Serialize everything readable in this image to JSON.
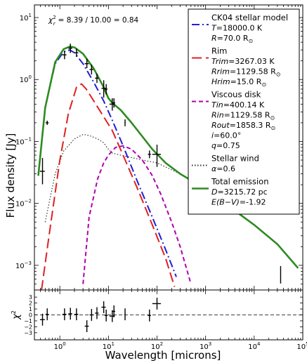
{
  "chart_data": [
    {
      "panel": "sed",
      "type": "line",
      "x_scale": "log",
      "y_scale": "log",
      "xlim": [
        0.3,
        100000
      ],
      "ylim": [
        0.0004,
        16
      ],
      "ylabel": "Flux density [Jy]",
      "x_ticks": [
        "10^0",
        "10^1",
        "10^2",
        "10^3",
        "10^4",
        "10^5"
      ],
      "y_ticks": [
        "10^-3",
        "10^-2",
        "10^-1",
        "10^0",
        "10^1"
      ],
      "chi_annotation": {
        "label": "χ",
        "sub": "r",
        "sup": "2",
        "text": "= 8.39 / 10.00 = 0.84"
      },
      "legend": [
        {
          "key": "stellar",
          "title": "CK04 stellar model",
          "lines": [
            {
              "var": "T",
              "text": "=18000.0 K"
            },
            {
              "var": "R",
              "text": "=70.0 R",
              "sun": true
            }
          ],
          "color": "#1f1fd6",
          "dash": "11,4,2,4"
        },
        {
          "key": "rim",
          "title": "Rim",
          "lines": [
            {
              "var": "Trim",
              "text": "=3267.03 K"
            },
            {
              "var": "Rrim",
              "text": "=1129.58 R",
              "sun": true
            },
            {
              "var": "Hrim",
              "text": "=15.0 R",
              "sun": true
            }
          ],
          "color": "#e02020",
          "dash": "14,6"
        },
        {
          "key": "disk",
          "title": "Viscous disk",
          "lines": [
            {
              "var": "Tin",
              "text": "=400.14 K"
            },
            {
              "var": "Rin",
              "text": "=1129.58 R",
              "sun": true
            },
            {
              "var": "Rout",
              "text": "=1858.3 R",
              "sun": true
            },
            {
              "var": "i",
              "text": "=60.0°"
            },
            {
              "var": "q",
              "text": "=0.75"
            }
          ],
          "color": "#b000b0",
          "dash": "6,4"
        },
        {
          "key": "wind",
          "title": "Stellar wind",
          "lines": [
            {
              "var": "α",
              "text": "=0.6"
            }
          ],
          "color": "#333333",
          "dash": "1.5,2.5"
        },
        {
          "key": "total",
          "title": "Total emission",
          "lines": [
            {
              "var": "D",
              "text": "=3215.72 pc"
            },
            {
              "var": "E(B−V)",
              "text": "=-1.92"
            }
          ],
          "color": "#2e8b22",
          "dash": ""
        }
      ],
      "series": [
        {
          "key": "stellar",
          "x": [
            0.36,
            0.5,
            0.8,
            1.2,
            1.6,
            2.0,
            3.0,
            5,
            8,
            12,
            20,
            40,
            80,
            150,
            250
          ],
          "y": [
            0.028,
            0.35,
            1.8,
            2.8,
            3.0,
            2.7,
            1.8,
            0.9,
            0.45,
            0.22,
            0.085,
            0.022,
            0.006,
            0.0018,
            0.00065
          ]
        },
        {
          "key": "rim",
          "x": [
            0.42,
            0.6,
            1.0,
            1.5,
            2.2,
            2.8,
            3.5,
            5,
            8,
            12,
            20,
            40,
            80,
            150,
            230
          ],
          "y": [
            0.0004,
            0.003,
            0.05,
            0.28,
            0.75,
            0.85,
            0.7,
            0.45,
            0.25,
            0.15,
            0.06,
            0.017,
            0.0045,
            0.0013,
            0.00045
          ]
        },
        {
          "key": "disk",
          "x": [
            3.0,
            4,
            6,
            8,
            10,
            14,
            20,
            30,
            50,
            80,
            120,
            200,
            300,
            500
          ],
          "y": [
            0.0005,
            0.006,
            0.025,
            0.045,
            0.06,
            0.08,
            0.085,
            0.075,
            0.05,
            0.028,
            0.014,
            0.005,
            0.002,
            0.0005
          ]
        },
        {
          "key": "wind",
          "x": [
            0.5,
            0.8,
            1.2,
            2.0,
            3.0,
            4.0,
            6,
            8,
            10,
            12,
            18,
            30,
            50,
            100,
            300,
            1000,
            3000,
            10000,
            30000,
            80000
          ],
          "y": [
            0.005,
            0.03,
            0.07,
            0.11,
            0.13,
            0.125,
            0.11,
            0.095,
            0.075,
            0.065,
            0.06,
            0.055,
            0.05,
            0.045,
            0.03,
            0.017,
            0.009,
            0.0045,
            0.0022,
            0.0009
          ]
        },
        {
          "key": "total",
          "x": [
            0.36,
            0.5,
            0.8,
            1.2,
            1.6,
            2.0,
            3.0,
            5,
            8,
            10,
            12,
            18,
            30,
            50,
            80,
            150,
            300,
            1000,
            3000,
            10000,
            30000,
            80000
          ],
          "y": [
            0.028,
            0.35,
            1.9,
            3.1,
            3.4,
            3.3,
            2.6,
            1.5,
            0.75,
            0.5,
            0.42,
            0.32,
            0.2,
            0.12,
            0.075,
            0.045,
            0.03,
            0.017,
            0.009,
            0.0045,
            0.0022,
            0.0009
          ]
        }
      ],
      "observations": [
        {
          "x": 0.44,
          "y": 0.033,
          "ylo": 0.022,
          "yhi": 0.05,
          "xerr": 0.05
        },
        {
          "x": 0.55,
          "y": 0.2,
          "ylo": 0.2,
          "yhi": 0.2,
          "xerr": 0.04
        },
        {
          "x": 1.25,
          "y": 2.5,
          "ylo": 2.3,
          "yhi": 2.7,
          "xerr": 0.12
        },
        {
          "x": 1.65,
          "y": 3.2,
          "ylo": 2.9,
          "yhi": 3.5,
          "xerr": 0.15
        },
        {
          "x": 2.2,
          "y": 2.7,
          "ylo": 2.5,
          "yhi": 2.9,
          "xerr": 0.2
        },
        {
          "x": 3.6,
          "y": 1.8,
          "ylo": 1.65,
          "yhi": 2.0,
          "xerr": 0.35
        },
        {
          "x": 4.5,
          "y": 1.45,
          "ylo": 1.3,
          "yhi": 1.6,
          "xerr": 0.4
        },
        {
          "x": 5.8,
          "y": 1.05,
          "ylo": 0.95,
          "yhi": 1.15,
          "xerr": 0.5
        },
        {
          "x": 8.0,
          "y": 0.72,
          "ylo": 0.55,
          "yhi": 0.9,
          "xerr": 0.8
        },
        {
          "x": 9.0,
          "y": 0.7,
          "ylo": 0.62,
          "yhi": 0.78,
          "xerr": 0.6
        },
        {
          "x": 12.0,
          "y": 0.4,
          "ylo": 0.34,
          "yhi": 0.46,
          "xerr": 1.5
        },
        {
          "x": 13.0,
          "y": 0.42,
          "ylo": 0.38,
          "yhi": 0.46,
          "xerr": 0.8
        },
        {
          "x": 22.0,
          "y": 0.2,
          "ylo": 0.19,
          "yhi": 0.21,
          "xerr": 0.5
        },
        {
          "x": 70.0,
          "y": 0.062,
          "ylo": 0.058,
          "yhi": 0.066,
          "xerr": 5
        },
        {
          "x": 100.0,
          "y": 0.062,
          "ylo": 0.042,
          "yhi": 0.082,
          "xerr": 20
        },
        {
          "x": 35000.0,
          "y": 0.0007,
          "ylo": 0.00055,
          "yhi": 0.0009,
          "xerr": 0
        }
      ]
    },
    {
      "panel": "residuals",
      "type": "scatter",
      "x_scale": "log",
      "xlim": [
        0.3,
        100000
      ],
      "ylim": [
        -4.2,
        4.2
      ],
      "xlabel": "Wavelength [microns]",
      "ylabel": "χ",
      "ylabel_sup": "2",
      "x_ticks": [
        "10^0",
        "10^1",
        "10^2",
        "10^3",
        "10^4",
        "10^5"
      ],
      "y_ticks": [
        "3",
        "2",
        "1",
        "0",
        "−1",
        "−2",
        "−3"
      ],
      "points": [
        {
          "x": 0.44,
          "y": -0.8,
          "err": 1.0,
          "xerr": 0.05
        },
        {
          "x": 0.55,
          "y": 0.1,
          "err": 1.0,
          "xerr": 0.04
        },
        {
          "x": 1.25,
          "y": 0.1,
          "err": 1.0,
          "xerr": 0.12
        },
        {
          "x": 1.65,
          "y": 0.2,
          "err": 1.0,
          "xerr": 0.15
        },
        {
          "x": 2.2,
          "y": 0.1,
          "err": 1.0,
          "xerr": 0.2
        },
        {
          "x": 3.6,
          "y": -1.9,
          "err": 1.0,
          "xerr": 0.35
        },
        {
          "x": 4.5,
          "y": 0.0,
          "err": 1.0,
          "xerr": 0.4
        },
        {
          "x": 5.8,
          "y": 0.3,
          "err": 1.0,
          "xerr": 0.5
        },
        {
          "x": 8.0,
          "y": 1.3,
          "err": 1.0,
          "xerr": 0.8
        },
        {
          "x": 9.0,
          "y": -0.1,
          "err": 1.0,
          "xerr": 0.6
        },
        {
          "x": 12.0,
          "y": -0.2,
          "err": 1.0,
          "xerr": 1.5
        },
        {
          "x": 13.0,
          "y": 0.6,
          "err": 1.0,
          "xerr": 0.8
        },
        {
          "x": 22.0,
          "y": 0.1,
          "err": 1.0,
          "xerr": 0.5
        },
        {
          "x": 70.0,
          "y": -0.1,
          "err": 1.0,
          "xerr": 5
        },
        {
          "x": 100.0,
          "y": 1.9,
          "err": 1.0,
          "xerr": 20
        }
      ]
    }
  ]
}
